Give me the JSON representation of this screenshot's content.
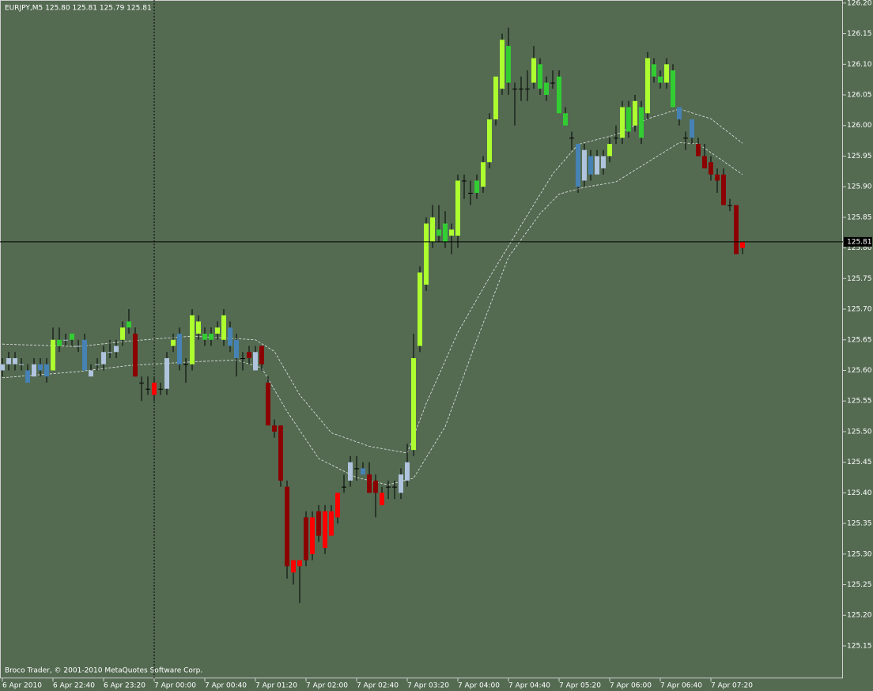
{
  "chart_data": {
    "type": "candlestick",
    "header": "EURJPY,M5  125.80 125.81 125.79 125.81",
    "footer": "Broco Trader, © 2001-2010 MetaQuotes Software Corp.",
    "background": "#546b52",
    "ylim": [
      125.097,
      126.205
    ],
    "yticks": [
      {
        "value": 125.15,
        "label": "125.15"
      },
      {
        "value": 125.2,
        "label": "125.20"
      },
      {
        "value": 125.25,
        "label": "125.25"
      },
      {
        "value": 125.3,
        "label": "125.30"
      },
      {
        "value": 125.35,
        "label": "125.35"
      },
      {
        "value": 125.4,
        "label": "125.40"
      },
      {
        "value": 125.45,
        "label": "125.45"
      },
      {
        "value": 125.5,
        "label": "125.50"
      },
      {
        "value": 125.55,
        "label": "125.55"
      },
      {
        "value": 125.6,
        "label": "125.60"
      },
      {
        "value": 125.65,
        "label": "125.65"
      },
      {
        "value": 125.7,
        "label": "125.70"
      },
      {
        "value": 125.75,
        "label": "125.75"
      },
      {
        "value": 125.8,
        "label": "125.80"
      },
      {
        "value": 125.85,
        "label": "125.85"
      },
      {
        "value": 125.9,
        "label": "125.90"
      },
      {
        "value": 125.95,
        "label": "125.95"
      },
      {
        "value": 126.0,
        "label": "126.00"
      },
      {
        "value": 126.05,
        "label": "126.05"
      },
      {
        "value": 126.1,
        "label": "126.10"
      },
      {
        "value": 126.15,
        "label": "126.15"
      },
      {
        "value": 126.2,
        "label": "126.20"
      }
    ],
    "xticks": [
      {
        "value": 0,
        "label": "6 Apr 2010"
      },
      {
        "value": 8,
        "label": "6 Apr 22:40"
      },
      {
        "value": 16,
        "label": "6 Apr 23:20"
      },
      {
        "value": 24,
        "label": "7 Apr 00:00"
      },
      {
        "value": 32,
        "label": "7 Apr 00:40"
      },
      {
        "value": 40,
        "label": "7 Apr 01:20"
      },
      {
        "value": 48,
        "label": "7 Apr 02:00"
      },
      {
        "value": 56,
        "label": "7 Apr 02:40"
      },
      {
        "value": 64,
        "label": "7 Apr 03:20"
      },
      {
        "value": 72,
        "label": "7 Apr 04:00"
      },
      {
        "value": 80,
        "label": "7 Apr 04:40"
      },
      {
        "value": 88,
        "label": "7 Apr 05:20"
      },
      {
        "value": 96,
        "label": "7 Apr 06:00"
      },
      {
        "value": 104,
        "label": "7 Apr 06:40"
      },
      {
        "value": 112,
        "label": "7 Apr 07:20"
      }
    ],
    "current_price": {
      "value": 125.81,
      "label": "125.81"
    },
    "crosshair_x": 24,
    "open": [
      125.6,
      125.61,
      125.62,
      125.61,
      125.6,
      125.59,
      125.61,
      125.61,
      125.6,
      125.64,
      125.65,
      125.65,
      125.64,
      125.65,
      125.59,
      125.61,
      125.61,
      125.63,
      125.63,
      125.65,
      125.67,
      125.66,
      125.58,
      125.57,
      125.58,
      125.57,
      125.57,
      125.64,
      125.66,
      125.61,
      125.61,
      125.68,
      125.65,
      125.66,
      125.66,
      125.65,
      125.67,
      125.65,
      125.62,
      125.63,
      125.63,
      125.64,
      125.58,
      125.51,
      125.51,
      125.41,
      125.29,
      125.28,
      125.36,
      125.3,
      125.37,
      125.31,
      125.33,
      125.36,
      125.41,
      125.42,
      125.44,
      125.44,
      125.43,
      125.42,
      125.4,
      125.41,
      125.41,
      125.4,
      125.42,
      125.47,
      125.64,
      125.74,
      125.81,
      125.82,
      125.81,
      125.83,
      125.82,
      125.91,
      125.89,
      125.91,
      125.9,
      125.94,
      126.01,
      126.06,
      126.07,
      126.06,
      126.06,
      126.06,
      126.07,
      126.06,
      126.07,
      126.07,
      126.08,
      126.02,
      125.98,
      125.97,
      125.96,
      125.92,
      125.92,
      125.93,
      125.95,
      125.98,
      125.98,
      126.03,
      126.0,
      125.98,
      126.02,
      126.1,
      126.08,
      126.07,
      126.09,
      126.03,
      125.98,
      126.01,
      125.97,
      125.95,
      125.94,
      125.92,
      125.92,
      125.87,
      125.87,
      125.8
    ],
    "high": [
      125.62,
      125.63,
      125.63,
      125.62,
      125.61,
      125.62,
      125.62,
      125.62,
      125.67,
      125.67,
      125.66,
      125.66,
      125.65,
      125.66,
      125.61,
      125.62,
      125.64,
      125.65,
      125.65,
      125.68,
      125.7,
      125.67,
      125.59,
      125.59,
      125.59,
      125.58,
      125.63,
      125.66,
      125.67,
      125.62,
      125.7,
      125.69,
      125.67,
      125.67,
      125.68,
      125.7,
      125.68,
      125.66,
      125.63,
      125.64,
      125.64,
      125.64,
      125.59,
      125.52,
      125.51,
      125.42,
      125.29,
      125.29,
      125.37,
      125.37,
      125.38,
      125.38,
      125.38,
      125.4,
      125.43,
      125.46,
      125.46,
      125.45,
      125.45,
      125.43,
      125.41,
      125.42,
      125.42,
      125.44,
      125.48,
      125.66,
      125.77,
      125.85,
      125.87,
      125.87,
      125.86,
      125.84,
      125.92,
      125.92,
      125.91,
      125.92,
      125.95,
      126.02,
      126.08,
      126.15,
      126.16,
      126.07,
      126.08,
      126.09,
      126.13,
      126.11,
      126.08,
      126.09,
      126.09,
      126.03,
      125.99,
      125.97,
      125.97,
      125.96,
      125.96,
      125.96,
      125.98,
      126.0,
      126.04,
      126.04,
      126.05,
      126.04,
      126.12,
      126.11,
      126.09,
      126.11,
      126.1,
      126.03,
      125.99,
      126.01,
      125.98,
      125.97,
      125.95,
      125.93,
      125.93,
      125.88,
      125.87,
      125.81
    ],
    "low": [
      125.59,
      125.6,
      125.6,
      125.6,
      125.58,
      125.59,
      125.59,
      125.58,
      125.6,
      125.63,
      125.64,
      125.64,
      125.63,
      125.6,
      125.59,
      125.6,
      125.6,
      125.62,
      125.62,
      125.64,
      125.66,
      125.59,
      125.55,
      125.56,
      125.55,
      125.56,
      125.56,
      125.63,
      125.6,
      125.58,
      125.6,
      125.65,
      125.64,
      125.64,
      125.65,
      125.64,
      125.63,
      125.59,
      125.6,
      125.61,
      125.6,
      125.6,
      125.51,
      125.49,
      125.41,
      125.26,
      125.25,
      125.22,
      125.28,
      125.29,
      125.32,
      125.3,
      125.33,
      125.35,
      125.4,
      125.41,
      125.42,
      125.43,
      125.4,
      125.36,
      125.38,
      125.39,
      125.39,
      125.39,
      125.41,
      125.46,
      125.63,
      125.73,
      125.8,
      125.81,
      125.8,
      125.79,
      125.8,
      125.88,
      125.87,
      125.88,
      125.89,
      125.93,
      126.0,
      126.05,
      126.05,
      126.0,
      126.04,
      126.04,
      126.06,
      126.05,
      126.04,
      126.06,
      126.02,
      126.0,
      125.96,
      125.89,
      125.9,
      125.91,
      125.92,
      125.92,
      125.94,
      125.97,
      125.97,
      125.98,
      125.99,
      125.97,
      126.01,
      126.07,
      126.06,
      126.06,
      126.03,
      126.0,
      125.96,
      125.97,
      125.95,
      125.93,
      125.91,
      125.89,
      125.87,
      125.86,
      125.79,
      125.79
    ],
    "close": [
      125.61,
      125.62,
      125.61,
      125.61,
      125.58,
      125.61,
      125.6,
      125.59,
      125.65,
      125.65,
      125.65,
      125.66,
      125.64,
      125.6,
      125.6,
      125.61,
      125.63,
      125.63,
      125.64,
      125.67,
      125.68,
      125.59,
      125.58,
      125.57,
      125.56,
      125.57,
      125.62,
      125.65,
      125.61,
      125.61,
      125.69,
      125.66,
      125.66,
      125.65,
      125.67,
      125.69,
      125.64,
      125.62,
      125.62,
      125.62,
      125.6,
      125.61,
      125.51,
      125.5,
      125.42,
      125.28,
      125.27,
      125.29,
      125.29,
      125.36,
      125.33,
      125.37,
      125.37,
      125.4,
      125.41,
      125.45,
      125.44,
      125.43,
      125.4,
      125.4,
      125.38,
      125.41,
      125.41,
      125.43,
      125.45,
      125.62,
      125.76,
      125.84,
      125.85,
      125.83,
      125.84,
      125.82,
      125.91,
      125.91,
      125.89,
      125.89,
      125.94,
      126.01,
      126.08,
      126.14,
      126.13,
      126.06,
      126.06,
      126.06,
      126.11,
      126.1,
      126.05,
      126.07,
      126.02,
      126.0,
      125.98,
      125.9,
      125.91,
      125.95,
      125.95,
      125.95,
      125.97,
      125.98,
      126.03,
      125.99,
      126.04,
      126.03,
      126.11,
      126.08,
      126.07,
      126.1,
      126.03,
      126.01,
      125.98,
      125.98,
      125.95,
      125.93,
      125.92,
      125.91,
      125.87,
      125.87,
      125.79,
      125.81
    ],
    "colors": [
      "#b0c4de",
      "#b0c4de",
      "#b0c4de",
      "#b0c4de",
      "#4682b4",
      "#b0c4de",
      "#4682b4",
      "#4682b4",
      "#adff2f",
      "#32cd32",
      "#b0c4de",
      "#32cd32",
      "#b0c4de",
      "#4682b4",
      "#b0c4de",
      "#b0c4de",
      "#b0c4de",
      "#b0c4de",
      "#b0c4de",
      "#adff2f",
      "#32cd32",
      "#8b0000",
      "#000000",
      "#000000",
      "#ff0000",
      "#000000",
      "#b0c4de",
      "#adff2f",
      "#4682b4",
      "#000000",
      "#adff2f",
      "#adff2f",
      "#32cd32",
      "#32cd32",
      "#adff2f",
      "#adff2f",
      "#4682b4",
      "#4682b4",
      "#000000",
      "#8b0000",
      "#b0c4de",
      "#8b0000",
      "#8b0000",
      "#8b0000",
      "#8b0000",
      "#8b0000",
      "#ff0000",
      "#ff0000",
      "#8b0000",
      "#ff0000",
      "#8b0000",
      "#ff0000",
      "#ff0000",
      "#ff0000",
      "#000000",
      "#b0c4de",
      "#000000",
      "#4682b4",
      "#8b0000",
      "#8b0000",
      "#ff0000",
      "#000000",
      "#000000",
      "#b0c4de",
      "#b0c4de",
      "#adff2f",
      "#adff2f",
      "#adff2f",
      "#adff2f",
      "#32cd32",
      "#32cd32",
      "#adff2f",
      "#adff2f",
      "#000000",
      "#000000",
      "#32cd32",
      "#adff2f",
      "#adff2f",
      "#adff2f",
      "#adff2f",
      "#32cd32",
      "#000000",
      "#000000",
      "#000000",
      "#adff2f",
      "#32cd32",
      "#32cd32",
      "#000000",
      "#32cd32",
      "#32cd32",
      "#000000",
      "#4682b4",
      "#b0c4de",
      "#4682b4",
      "#b0c4de",
      "#b0c4de",
      "#adff2f",
      "#000000",
      "#adff2f",
      "#32cd32",
      "#adff2f",
      "#32cd32",
      "#adff2f",
      "#32cd32",
      "#32cd32",
      "#adff2f",
      "#32cd32",
      "#4682b4",
      "#000000",
      "#4682b4",
      "#8b0000",
      "#8b0000",
      "#8b0000",
      "#8b0000",
      "#8b0000",
      "#000000",
      "#8b0000",
      "#ff0000"
    ],
    "upper_band": {
      "x": [
        0,
        12,
        20,
        30,
        40,
        43,
        47,
        52,
        58,
        64,
        67,
        72,
        77,
        82,
        87,
        91,
        97,
        102,
        107,
        112,
        117
      ],
      "values": [
        125.643,
        125.639,
        125.648,
        125.656,
        125.65,
        125.631,
        125.56,
        125.498,
        125.476,
        125.465,
        125.546,
        125.662,
        125.752,
        125.837,
        125.921,
        125.969,
        125.985,
        126.011,
        126.027,
        126.011,
        125.971
      ]
    },
    "lower_band": {
      "x": [
        0,
        12,
        20,
        30,
        37,
        41,
        45,
        50,
        56,
        61,
        65,
        70,
        75,
        80,
        85,
        88,
        92,
        97,
        102,
        107,
        110,
        117
      ],
      "values": [
        125.588,
        125.598,
        125.608,
        125.614,
        125.617,
        125.604,
        125.533,
        125.456,
        125.425,
        125.413,
        125.424,
        125.508,
        125.65,
        125.785,
        125.856,
        125.888,
        125.899,
        125.908,
        125.94,
        125.972,
        125.97,
        125.92
      ]
    }
  }
}
